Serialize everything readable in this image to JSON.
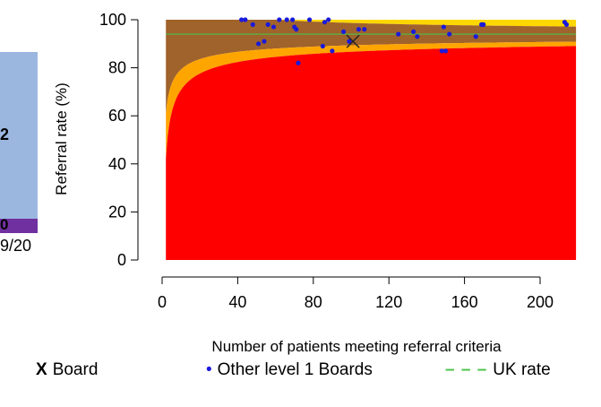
{
  "left_panel": {
    "value_label": "2",
    "value_label_2": "0",
    "date_label": "9/20",
    "colors": {
      "bar": "#9bb7df",
      "band": "#7030a0"
    }
  },
  "chart_data": {
    "type": "scatter",
    "title": "",
    "xlabel": "Number of patients meeting referral criteria",
    "ylabel": "Referral rate (%)",
    "xlim": [
      0,
      220
    ],
    "ylim": [
      0,
      100
    ],
    "xticks": [
      0,
      40,
      80,
      120,
      160,
      200
    ],
    "yticks": [
      0,
      20,
      40,
      60,
      80,
      100
    ],
    "uk_rate": 94,
    "funnel": {
      "p": 0.94,
      "z_inner": 1.96,
      "z_outer": 3.09
    },
    "colors": {
      "within": "#a0632b",
      "warning": "#ffa500",
      "alarm": "#ff0000",
      "above": "#ffd700",
      "uk_line": "#49c249",
      "points": "#1a1adb",
      "board": "#222222"
    },
    "board": {
      "x": 101,
      "y": 91
    },
    "series": [
      {
        "name": "Other level 1 Boards",
        "points": [
          [
            42,
            100
          ],
          [
            44,
            100
          ],
          [
            48,
            98
          ],
          [
            51,
            90
          ],
          [
            54,
            91
          ],
          [
            56,
            98
          ],
          [
            59,
            97
          ],
          [
            62,
            100
          ],
          [
            66,
            100
          ],
          [
            69,
            100
          ],
          [
            70,
            97
          ],
          [
            71,
            96
          ],
          [
            72,
            82
          ],
          [
            78,
            100
          ],
          [
            85,
            89
          ],
          [
            86,
            99
          ],
          [
            88,
            100
          ],
          [
            90,
            87
          ],
          [
            96,
            95
          ],
          [
            99,
            91
          ],
          [
            104,
            96
          ],
          [
            107,
            96
          ],
          [
            125,
            94
          ],
          [
            133,
            95
          ],
          [
            135,
            93
          ],
          [
            148,
            87
          ],
          [
            149,
            97
          ],
          [
            150,
            87
          ],
          [
            152,
            94
          ],
          [
            166,
            93
          ],
          [
            169,
            98
          ],
          [
            170,
            98
          ],
          [
            213,
            99
          ],
          [
            214,
            98
          ]
        ]
      }
    ]
  },
  "legend": {
    "board_symbol": "X",
    "board_label": "Board",
    "others_symbol": "•",
    "others_label": "Other level 1 Boards",
    "uk_symbol": "– – –",
    "uk_label": "UK rate"
  }
}
